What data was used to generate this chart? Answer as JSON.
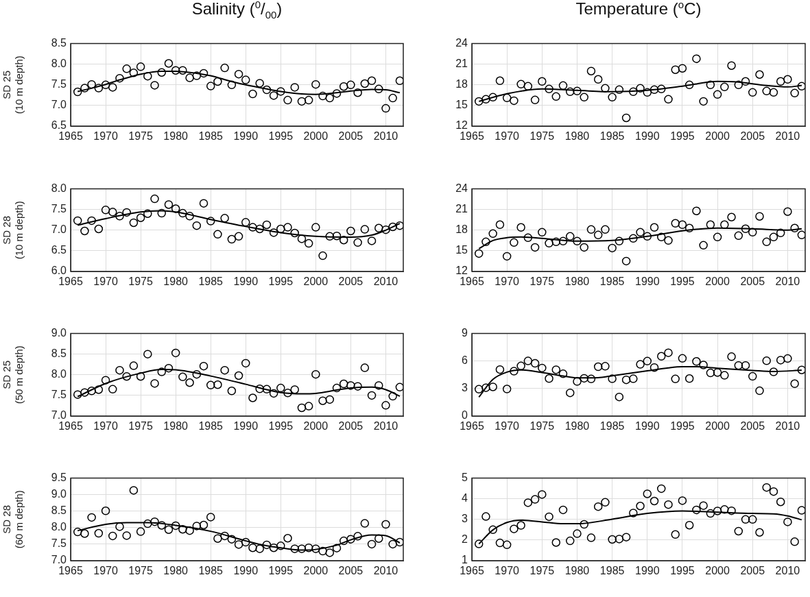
{
  "chart_data": [
    {
      "type": "scatter",
      "title": "Salinity ($^{0}$/$_{00}$)",
      "ylabel": "SD 25 (10 m depth)",
      "xlim": [
        1965,
        2012.5
      ],
      "xticks": [
        1965,
        1970,
        1975,
        1980,
        1985,
        1990,
        1995,
        2000,
        2005,
        2010
      ],
      "ylim": [
        6.5,
        8.5
      ],
      "yticks": [
        6.5,
        {
          "value": 7,
          "label": "7.0"
        },
        7.5,
        {
          "value": 8,
          "label": "8.0"
        },
        8.5
      ],
      "grid": true,
      "marker": "circle",
      "series": [
        {
          "type": "scatter",
          "color": "#000000",
          "x": [
            1966,
            1967,
            1968,
            1969,
            1970,
            1971,
            1972,
            1973,
            1974,
            1975,
            1976,
            1977,
            1978,
            1979,
            1980,
            1981,
            1982,
            1983,
            1984,
            1985,
            1986,
            1987,
            1988,
            1989,
            1990,
            1991,
            1992,
            1993,
            1994,
            1995,
            1996,
            1997,
            1998,
            1999,
            2000,
            2001,
            2002,
            2003,
            2004,
            2005,
            2006,
            2007,
            2008,
            2009,
            2010,
            2011,
            2012
          ],
          "values": [
            7.33,
            7.42,
            7.51,
            7.42,
            7.5,
            7.44,
            7.66,
            7.89,
            7.79,
            7.94,
            7.71,
            7.49,
            7.8,
            8.02,
            7.85,
            7.85,
            7.67,
            7.72,
            7.78,
            7.47,
            7.58,
            7.91,
            7.5,
            7.76,
            7.62,
            7.28,
            7.54,
            7.38,
            7.24,
            7.34,
            7.13,
            7.44,
            7.1,
            7.13,
            7.51,
            7.23,
            7.18,
            7.29,
            7.46,
            7.5,
            7.31,
            7.53,
            7.6,
            7.4,
            6.93,
            7.18,
            7.6
          ]
        },
        {
          "type": "line",
          "color": "#000000",
          "marker": "none",
          "x": [
            1966,
            1968,
            1970,
            1972,
            1975,
            1978,
            1980,
            1983,
            1985,
            1988,
            1990,
            1993,
            1995,
            1998,
            2000,
            2003,
            2005,
            2008,
            2010,
            2012
          ],
          "values": [
            7.34,
            7.42,
            7.51,
            7.62,
            7.76,
            7.83,
            7.83,
            7.78,
            7.72,
            7.58,
            7.5,
            7.4,
            7.34,
            7.28,
            7.27,
            7.31,
            7.35,
            7.39,
            7.38,
            7.31
          ]
        }
      ]
    },
    {
      "type": "scatter",
      "title": "Temperature ($^{o}$C)",
      "xlim": [
        1965,
        2012.5
      ],
      "xticks": [
        1965,
        1970,
        1975,
        1980,
        1985,
        1990,
        1995,
        2000,
        2005,
        2010
      ],
      "ylim": [
        12,
        24
      ],
      "yticks": [
        12,
        15,
        18,
        21,
        24
      ],
      "grid": true,
      "marker": "circle",
      "series": [
        {
          "type": "scatter",
          "color": "#000000",
          "x": [
            1966,
            1967,
            1968,
            1969,
            1970,
            1971,
            1972,
            1973,
            1974,
            1975,
            1976,
            1977,
            1978,
            1979,
            1980,
            1981,
            1982,
            1983,
            1984,
            1985,
            1986,
            1987,
            1988,
            1989,
            1990,
            1991,
            1992,
            1993,
            1994,
            1995,
            1996,
            1997,
            1998,
            1999,
            2000,
            2001,
            2002,
            2003,
            2004,
            2005,
            2006,
            2007,
            2008,
            2009,
            2010,
            2011,
            2012
          ],
          "values": [
            15.6,
            15.9,
            16.2,
            18.6,
            16.1,
            15.7,
            18.1,
            17.8,
            15.8,
            18.5,
            17.4,
            16.3,
            17.9,
            17.0,
            17.1,
            16.2,
            20.0,
            18.8,
            17.5,
            16.2,
            17.3,
            13.2,
            17.0,
            17.5,
            16.9,
            17.3,
            17.4,
            15.9,
            20.2,
            20.4,
            18.0,
            21.8,
            15.6,
            18.0,
            16.6,
            17.7,
            20.8,
            18.0,
            18.5,
            16.9,
            19.5,
            17.1,
            16.9,
            18.5,
            18.8,
            16.8,
            17.8
          ]
        },
        {
          "type": "line",
          "color": "#000000",
          "marker": "none",
          "x": [
            1966,
            1970,
            1975,
            1980,
            1985,
            1990,
            1995,
            2000,
            2003,
            2007,
            2010,
            2012
          ],
          "values": [
            15.6,
            16.7,
            17.4,
            17.2,
            17.0,
            17.2,
            17.8,
            18.5,
            18.4,
            17.9,
            17.7,
            17.9
          ]
        }
      ]
    },
    {
      "type": "scatter",
      "ylabel": "SD 28 (10 m depth)",
      "xlim": [
        1965,
        2012.5
      ],
      "xticks": [
        1965,
        1970,
        1975,
        1980,
        1985,
        1990,
        1995,
        2000,
        2005,
        2010
      ],
      "ylim": [
        6.0,
        8.0
      ],
      "yticks": [
        {
          "value": 6,
          "label": "6.0"
        },
        6.5,
        {
          "value": 7,
          "label": "7.0"
        },
        7.5,
        {
          "value": 8,
          "label": "8.0"
        }
      ],
      "grid": true,
      "marker": "circle",
      "series": [
        {
          "type": "scatter",
          "color": "#000000",
          "x": [
            1966,
            1967,
            1968,
            1969,
            1970,
            1971,
            1972,
            1973,
            1974,
            1975,
            1976,
            1977,
            1978,
            1979,
            1980,
            1981,
            1982,
            1983,
            1984,
            1985,
            1986,
            1987,
            1988,
            1989,
            1990,
            1991,
            1992,
            1993,
            1994,
            1995,
            1996,
            1997,
            1998,
            1999,
            2000,
            2001,
            2002,
            2003,
            2004,
            2005,
            2006,
            2007,
            2008,
            2009,
            2010,
            2011,
            2012
          ],
          "values": [
            7.23,
            6.98,
            7.23,
            7.03,
            7.49,
            7.44,
            7.34,
            7.43,
            7.18,
            7.3,
            7.4,
            7.76,
            7.41,
            7.62,
            7.52,
            7.41,
            7.34,
            7.11,
            7.65,
            7.22,
            6.9,
            7.29,
            6.78,
            6.85,
            7.19,
            7.07,
            7.03,
            7.13,
            6.94,
            7.03,
            7.07,
            6.93,
            6.79,
            6.68,
            7.07,
            6.38,
            6.85,
            6.86,
            6.76,
            6.98,
            6.7,
            7.02,
            6.74,
            7.05,
            7.01,
            7.08,
            7.11
          ]
        },
        {
          "type": "line",
          "color": "#000000",
          "marker": "none",
          "x": [
            1966,
            1970,
            1975,
            1978,
            1980,
            1985,
            1990,
            1995,
            2000,
            2005,
            2008,
            2010,
            2012
          ],
          "values": [
            7.12,
            7.28,
            7.44,
            7.47,
            7.44,
            7.26,
            7.09,
            6.94,
            6.85,
            6.83,
            6.88,
            7.0,
            7.16
          ]
        }
      ]
    },
    {
      "type": "scatter",
      "xlim": [
        1965,
        2012.5
      ],
      "xticks": [
        1965,
        1970,
        1975,
        1980,
        1985,
        1990,
        1995,
        2000,
        2005,
        2010
      ],
      "ylim": [
        12,
        24
      ],
      "yticks": [
        12,
        15,
        18,
        21,
        24
      ],
      "grid": true,
      "marker": "circle",
      "series": [
        {
          "type": "scatter",
          "color": "#000000",
          "x": [
            1966,
            1967,
            1968,
            1969,
            1970,
            1971,
            1972,
            1973,
            1974,
            1975,
            1976,
            1977,
            1978,
            1979,
            1980,
            1981,
            1982,
            1983,
            1984,
            1985,
            1986,
            1987,
            1988,
            1989,
            1990,
            1991,
            1992,
            1993,
            1994,
            1995,
            1996,
            1997,
            1998,
            1999,
            2000,
            2001,
            2002,
            2003,
            2004,
            2005,
            2006,
            2007,
            2008,
            2009,
            2010,
            2011,
            2012
          ],
          "values": [
            14.6,
            16.3,
            17.5,
            18.8,
            14.2,
            16.2,
            18.4,
            16.9,
            15.5,
            17.7,
            16.1,
            16.3,
            16.4,
            17.1,
            16.4,
            15.5,
            18.1,
            17.3,
            18.1,
            15.4,
            16.4,
            13.5,
            16.8,
            17.7,
            17.1,
            18.4,
            17.0,
            16.5,
            19.0,
            18.8,
            18.3,
            20.8,
            15.8,
            18.8,
            17.0,
            18.8,
            19.9,
            17.2,
            18.2,
            17.7,
            20.0,
            16.3,
            17.0,
            17.6,
            20.7,
            18.3,
            17.3
          ]
        },
        {
          "type": "line",
          "color": "#000000",
          "marker": "none",
          "x": [
            1966,
            1968,
            1970,
            1972,
            1975,
            1980,
            1985,
            1990,
            1995,
            2000,
            2005,
            2010,
            2012
          ],
          "values": [
            15.3,
            16.5,
            16.9,
            17.0,
            16.8,
            16.4,
            16.5,
            17.1,
            17.9,
            18.3,
            18.2,
            18.0,
            18.2
          ]
        }
      ]
    },
    {
      "type": "scatter",
      "ylabel": "SD 25 (50 m depth)",
      "xlim": [
        1965,
        2012.5
      ],
      "xticks": [
        1965,
        1970,
        1975,
        1980,
        1985,
        1990,
        1995,
        2000,
        2005,
        2010
      ],
      "ylim": [
        7.0,
        9.0
      ],
      "yticks": [
        {
          "value": 7,
          "label": "7.0"
        },
        7.5,
        {
          "value": 8,
          "label": "8.0"
        },
        8.5,
        {
          "value": 9,
          "label": "9.0"
        }
      ],
      "grid": true,
      "marker": "circle",
      "series": [
        {
          "type": "scatter",
          "color": "#000000",
          "x": [
            1966,
            1967,
            1968,
            1969,
            1970,
            1971,
            1972,
            1973,
            1974,
            1975,
            1976,
            1977,
            1978,
            1979,
            1980,
            1981,
            1982,
            1983,
            1984,
            1985,
            1986,
            1987,
            1988,
            1989,
            1990,
            1991,
            1992,
            1993,
            1994,
            1995,
            1996,
            1997,
            1998,
            1999,
            2000,
            2001,
            2002,
            2003,
            2004,
            2005,
            2006,
            2007,
            2008,
            2009,
            2010,
            2011,
            2012
          ],
          "values": [
            7.52,
            7.57,
            7.61,
            7.64,
            7.87,
            7.65,
            8.11,
            7.96,
            8.22,
            7.96,
            8.5,
            7.79,
            8.07,
            8.16,
            8.53,
            7.95,
            7.81,
            8.01,
            8.21,
            7.75,
            7.76,
            8.11,
            7.61,
            7.98,
            8.28,
            7.44,
            7.66,
            7.65,
            7.55,
            7.68,
            7.56,
            7.64,
            7.2,
            7.24,
            8.01,
            7.37,
            7.4,
            7.68,
            7.78,
            7.74,
            7.72,
            8.17,
            7.5,
            7.74,
            7.26,
            7.48,
            7.7
          ]
        },
        {
          "type": "line",
          "color": "#000000",
          "marker": "none",
          "x": [
            1966,
            1970,
            1975,
            1978,
            1980,
            1985,
            1990,
            1993,
            1995,
            1998,
            2000,
            2003,
            2005,
            2008,
            2010,
            2012
          ],
          "values": [
            7.47,
            7.79,
            8.04,
            8.13,
            8.12,
            7.97,
            7.77,
            7.64,
            7.57,
            7.54,
            7.55,
            7.63,
            7.68,
            7.7,
            7.64,
            7.48
          ]
        }
      ]
    },
    {
      "type": "scatter",
      "xlim": [
        1965,
        2012.5
      ],
      "xticks": [
        1965,
        1970,
        1975,
        1980,
        1985,
        1990,
        1995,
        2000,
        2005,
        2010
      ],
      "ylim": [
        0,
        9
      ],
      "yticks": [
        0,
        3,
        6,
        9
      ],
      "grid": true,
      "marker": "circle",
      "series": [
        {
          "type": "scatter",
          "color": "#000000",
          "x": [
            1966,
            1967,
            1968,
            1969,
            1970,
            1971,
            1972,
            1973,
            1974,
            1975,
            1976,
            1977,
            1978,
            1979,
            1980,
            1981,
            1982,
            1983,
            1984,
            1985,
            1986,
            1987,
            1988,
            1989,
            1990,
            1991,
            1992,
            1993,
            1994,
            1995,
            1996,
            1997,
            1998,
            1999,
            2000,
            2001,
            2002,
            2003,
            2004,
            2005,
            2006,
            2007,
            2008,
            2009,
            2010,
            2011,
            2012
          ],
          "values": [
            2.93,
            3.09,
            3.18,
            5.07,
            2.95,
            4.89,
            5.47,
            6.01,
            5.75,
            5.24,
            4.09,
            5.05,
            4.61,
            2.53,
            3.77,
            4.12,
            4.05,
            5.38,
            5.43,
            4.07,
            2.08,
            3.95,
            4.07,
            5.64,
            5.99,
            5.29,
            6.52,
            6.9,
            4.05,
            6.29,
            4.09,
            5.96,
            5.57,
            4.7,
            4.75,
            4.44,
            6.48,
            5.52,
            5.52,
            4.33,
            2.76,
            6.03,
            4.82,
            6.1,
            6.27,
            3.53,
            5.03
          ]
        },
        {
          "type": "line",
          "color": "#000000",
          "marker": "none",
          "x": [
            1966,
            1968,
            1970,
            1972,
            1975,
            1978,
            1980,
            1983,
            1985,
            1990,
            1993,
            1995,
            1997,
            2000,
            2005,
            2008,
            2012
          ],
          "values": [
            2.06,
            4.0,
            4.79,
            5.03,
            4.75,
            4.37,
            4.16,
            4.19,
            4.4,
            4.93,
            5.26,
            5.38,
            5.38,
            5.21,
            4.98,
            4.86,
            5.0
          ]
        }
      ]
    },
    {
      "type": "scatter",
      "ylabel": "SD 28 (60 m depth)",
      "xlim": [
        1965,
        2012.5
      ],
      "xticks": [
        1965,
        1970,
        1975,
        1980,
        1985,
        1990,
        1995,
        2000,
        2005,
        2010
      ],
      "ylim": [
        7.0,
        9.5
      ],
      "yticks": [
        {
          "value": 7,
          "label": "7.0"
        },
        7.5,
        {
          "value": 8,
          "label": "8.0"
        },
        8.5,
        {
          "value": 9,
          "label": "9.0"
        },
        9.5
      ],
      "grid": true,
      "marker": "circle",
      "series": [
        {
          "type": "scatter",
          "color": "#000000",
          "x": [
            1966,
            1967,
            1968,
            1969,
            1970,
            1971,
            1972,
            1973,
            1974,
            1975,
            1976,
            1977,
            1978,
            1979,
            1980,
            1981,
            1982,
            1983,
            1984,
            1985,
            1986,
            1987,
            1988,
            1989,
            1990,
            1991,
            1992,
            1993,
            1994,
            1995,
            1996,
            1997,
            1998,
            1999,
            2000,
            2001,
            2002,
            2003,
            2004,
            2005,
            2006,
            2007,
            2008,
            2009,
            2010,
            2011,
            2012
          ],
          "values": [
            7.87,
            7.82,
            8.31,
            7.83,
            8.51,
            7.75,
            8.03,
            7.76,
            9.13,
            7.88,
            8.12,
            8.18,
            8.07,
            7.94,
            8.06,
            7.95,
            7.91,
            8.05,
            8.08,
            8.32,
            7.67,
            7.75,
            7.65,
            7.49,
            7.56,
            7.39,
            7.36,
            7.48,
            7.39,
            7.45,
            7.68,
            7.36,
            7.36,
            7.39,
            7.36,
            7.29,
            7.24,
            7.38,
            7.6,
            7.65,
            7.74,
            8.13,
            7.5,
            7.67,
            8.1,
            7.5,
            7.56
          ]
        },
        {
          "type": "line",
          "color": "#000000",
          "marker": "none",
          "x": [
            1966,
            1970,
            1973,
            1976,
            1980,
            1985,
            1990,
            1993,
            1995,
            1998,
            2000,
            2003,
            2005,
            2008,
            2010,
            2012
          ],
          "values": [
            7.91,
            8.1,
            8.15,
            8.15,
            8.07,
            7.89,
            7.6,
            7.45,
            7.39,
            7.32,
            7.34,
            7.47,
            7.63,
            7.78,
            7.76,
            7.54
          ]
        }
      ]
    },
    {
      "type": "scatter",
      "xlim": [
        1965,
        2012.5
      ],
      "xticks": [
        1965,
        1970,
        1975,
        1980,
        1985,
        1990,
        1995,
        2000,
        2005,
        2010
      ],
      "ylim": [
        1,
        5
      ],
      "yticks": [
        1,
        2,
        3,
        4,
        5
      ],
      "grid": true,
      "marker": "circle",
      "series": [
        {
          "type": "scatter",
          "color": "#000000",
          "x": [
            1966,
            1967,
            1968,
            1969,
            1970,
            1971,
            1972,
            1973,
            1974,
            1975,
            1976,
            1977,
            1978,
            1979,
            1980,
            1981,
            1982,
            1983,
            1984,
            1985,
            1986,
            1987,
            1988,
            1989,
            1990,
            1991,
            1992,
            1993,
            1994,
            1995,
            1996,
            1997,
            1998,
            1999,
            2000,
            2001,
            2002,
            2003,
            2004,
            2005,
            2006,
            2007,
            2008,
            2009,
            2010,
            2011,
            2012
          ],
          "values": [
            1.81,
            3.14,
            2.5,
            1.86,
            1.77,
            2.54,
            2.71,
            3.81,
            3.97,
            4.21,
            3.13,
            1.88,
            3.46,
            1.96,
            2.31,
            2.76,
            2.11,
            3.62,
            3.83,
            2.03,
            2.05,
            2.14,
            3.31,
            3.65,
            4.24,
            3.89,
            4.49,
            3.72,
            2.27,
            3.91,
            2.72,
            3.46,
            3.67,
            3.29,
            3.41,
            3.48,
            3.42,
            2.43,
            3.0,
            3.0,
            2.37,
            4.55,
            4.35,
            3.85,
            2.88,
            1.92,
            3.44
          ]
        },
        {
          "type": "line",
          "color": "#000000",
          "marker": "none",
          "x": [
            1966,
            1968,
            1970,
            1972,
            1975,
            1978,
            1980,
            1985,
            1990,
            1995,
            2000,
            2005,
            2008,
            2010,
            2012
          ],
          "values": [
            1.81,
            2.49,
            2.85,
            2.96,
            2.88,
            2.79,
            2.79,
            3.01,
            3.29,
            3.41,
            3.35,
            3.29,
            3.27,
            3.17,
            2.98
          ]
        }
      ]
    }
  ]
}
